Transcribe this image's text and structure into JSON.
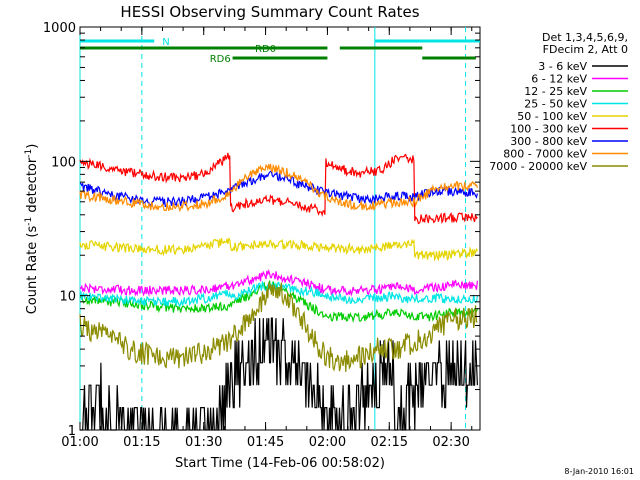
{
  "chart_data": {
    "type": "line",
    "title": "HESSI Observing Summary Count Rates",
    "xlabel": "Start Time (14-Feb-06 00:58:02)",
    "ylabel_main": "Count Rate (s",
    "ylabel_sup1": "-1",
    "ylabel_mid": " detector",
    "ylabel_sup2": "-1",
    "ylabel_end": ")",
    "y_scale": "log",
    "xlim_min": [
      60,
      157
    ],
    "ylim": [
      1,
      1000
    ],
    "x_ticks": [
      {
        "min": 60,
        "label": "01:00"
      },
      {
        "min": 75,
        "label": "01:15"
      },
      {
        "min": 90,
        "label": "01:30"
      },
      {
        "min": 105,
        "label": "01:45"
      },
      {
        "min": 120,
        "label": "02:00"
      },
      {
        "min": 135,
        "label": "02:15"
      },
      {
        "min": 150,
        "label": "02:30"
      }
    ],
    "y_ticks": [
      {
        "value": 1,
        "label": "1"
      },
      {
        "value": 10,
        "label": "10"
      },
      {
        "value": 100,
        "label": "100"
      },
      {
        "value": 1000,
        "label": "1000"
      }
    ],
    "legend_header": [
      "Det 1,3,4,5,6,9,",
      "FDecim 2, Att 0"
    ],
    "legend_position": "right",
    "footer_date": "8-Jan-2010 16:01",
    "solid_cyan_lines_min": [
      60,
      131.5
    ],
    "dashed_cyan_lines_min": [
      75,
      153.5
    ],
    "flags": [
      {
        "label": "N",
        "color": "#00e5e5",
        "level": 3,
        "segments": [
          [
            60,
            78
          ],
          [
            131.5,
            157
          ]
        ]
      },
      {
        "label": "RD0",
        "color": "#008000",
        "level": 2,
        "segments": [
          [
            60,
            120
          ],
          [
            123,
            143
          ]
        ]
      },
      {
        "label": "RD6",
        "color": "#008000",
        "level": 1,
        "segments": [
          [
            97,
            120
          ],
          [
            143,
            156
          ]
        ]
      }
    ],
    "series": [
      {
        "name": "3 - 6 keV",
        "color": "#000000",
        "x": [
          60,
          65,
          70,
          75,
          80,
          88,
          93,
          94,
          98,
          102,
          106,
          110,
          114,
          118,
          119.5,
          120,
          124,
          128,
          132,
          136,
          136.5,
          140,
          144,
          148,
          152,
          155
        ],
        "y": [
          1,
          1.8,
          1,
          1,
          1,
          1,
          1,
          1.5,
          2.5,
          3.5,
          4.5,
          3.5,
          2.5,
          1.8,
          1.3,
          1,
          1.2,
          1.8,
          2.5,
          3,
          1,
          1.8,
          2.3,
          2.8,
          3,
          3
        ]
      },
      {
        "name": "6 - 12 keV",
        "color": "#ff00ff",
        "x": [
          60,
          70,
          80,
          90,
          97,
          103,
          106,
          110,
          116,
          120,
          125,
          131,
          137,
          141,
          146,
          150,
          155
        ],
        "y": [
          11.5,
          11,
          11,
          11,
          12,
          13.5,
          14.5,
          13.5,
          12,
          11,
          11,
          11,
          11.5,
          11,
          11.5,
          12,
          12
        ]
      },
      {
        "name": "12 - 25 keV",
        "color": "#00cc00",
        "x": [
          60,
          68,
          76,
          84,
          90,
          97,
          102,
          106,
          110,
          114,
          118,
          120,
          124,
          130,
          136,
          141,
          146,
          150,
          155
        ],
        "y": [
          9.5,
          9,
          8.5,
          8,
          8,
          8.5,
          10.5,
          12,
          11,
          9,
          7.5,
          7,
          7,
          7,
          7.5,
          7,
          7,
          7.5,
          7.5
        ]
      },
      {
        "name": "25 - 50 keV",
        "color": "#00e5e5",
        "x": [
          60,
          68,
          76,
          84,
          90,
          96.5,
          97,
          100,
          106,
          112,
          118,
          119.5,
          120,
          125,
          132,
          136.5,
          137,
          141,
          146,
          150,
          155
        ],
        "y": [
          10,
          9.5,
          9,
          9,
          9.5,
          10.5,
          9.5,
          11,
          12,
          11,
          10.5,
          10,
          9.5,
          9.5,
          9.5,
          10,
          9.5,
          9.5,
          9.5,
          9.5,
          9.5
        ]
      },
      {
        "name": "50 - 100 keV",
        "color": "#e5d400",
        "x": [
          60,
          68,
          76,
          84,
          90,
          96.5,
          96.5,
          104,
          112,
          119.5,
          119.5,
          128,
          136.5,
          136.5,
          141,
          141,
          148,
          155
        ],
        "y": [
          24,
          23,
          22,
          22,
          23,
          26,
          23,
          24,
          24,
          23,
          23,
          22,
          24,
          24,
          24,
          20,
          20,
          21
        ]
      },
      {
        "name": "100 - 300 keV",
        "color": "#ff0000",
        "x": [
          60,
          68,
          76,
          84,
          90,
          96.5,
          96.5,
          100,
          106,
          112,
          119.5,
          119.5,
          123,
          128,
          133,
          136.5,
          136.5,
          141,
          141,
          148,
          155
        ],
        "y": [
          98,
          88,
          78,
          75,
          80,
          110,
          44,
          48,
          52,
          48,
          42,
          100,
          88,
          82,
          85,
          105,
          105,
          105,
          37,
          38,
          38
        ]
      },
      {
        "name": "300 - 800 keV",
        "color": "#0000ff",
        "x": [
          60,
          68,
          76,
          84,
          90,
          96.5,
          100,
          106,
          112,
          119.5,
          124,
          130,
          136.5,
          141,
          146,
          150,
          155
        ],
        "y": [
          65,
          56,
          50,
          50,
          53,
          60,
          70,
          80,
          70,
          58,
          55,
          52,
          55,
          54,
          60,
          60,
          58
        ]
      },
      {
        "name": "800 - 7000 keV",
        "color": "#ff8c00",
        "x": [
          60,
          68,
          76,
          84,
          90,
          96.5,
          100,
          106,
          112,
          119.5,
          124,
          130,
          136.5,
          141,
          146,
          150,
          155
        ],
        "y": [
          56,
          52,
          47,
          46,
          48,
          58,
          75,
          92,
          78,
          55,
          48,
          46,
          50,
          50,
          62,
          66,
          65
        ]
      },
      {
        "name": "7000 - 20000 keV",
        "color": "#8c8c00",
        "x": [
          60,
          66,
          72,
          78,
          84,
          90,
          96,
          100,
          104,
          107,
          110,
          113,
          116,
          120,
          124,
          128,
          132,
          136,
          141,
          146,
          150,
          155
        ],
        "y": [
          6,
          5,
          4,
          3.5,
          3.5,
          3.8,
          4.5,
          6,
          9,
          12,
          10,
          7.5,
          5,
          3.5,
          3.2,
          3.5,
          4,
          4,
          4.5,
          5.5,
          6.5,
          7
        ]
      }
    ]
  }
}
